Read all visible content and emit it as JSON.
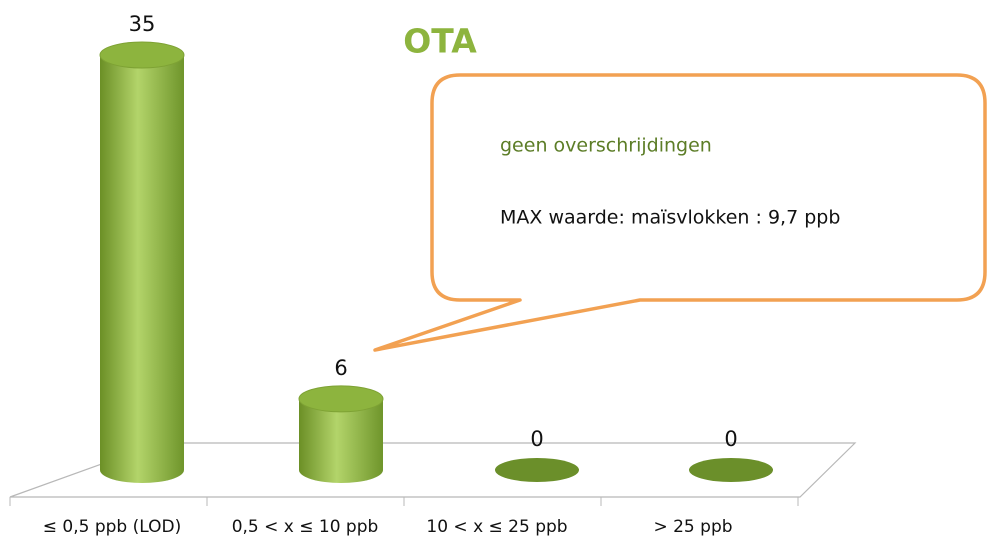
{
  "chart_data": {
    "type": "bar",
    "title": "OTA",
    "categories": [
      "≤ 0,5 ppb (LOD)",
      "0,5 < x ≤ 10 ppb",
      "10 < x ≤ 25 ppb",
      "> 25 ppb"
    ],
    "values": [
      35,
      6,
      0,
      0
    ],
    "color": "#8db43e",
    "annotations": [
      "geen overschrijdingen",
      "MAX waarde: maïsvlokken : 9,7 ppb"
    ]
  }
}
